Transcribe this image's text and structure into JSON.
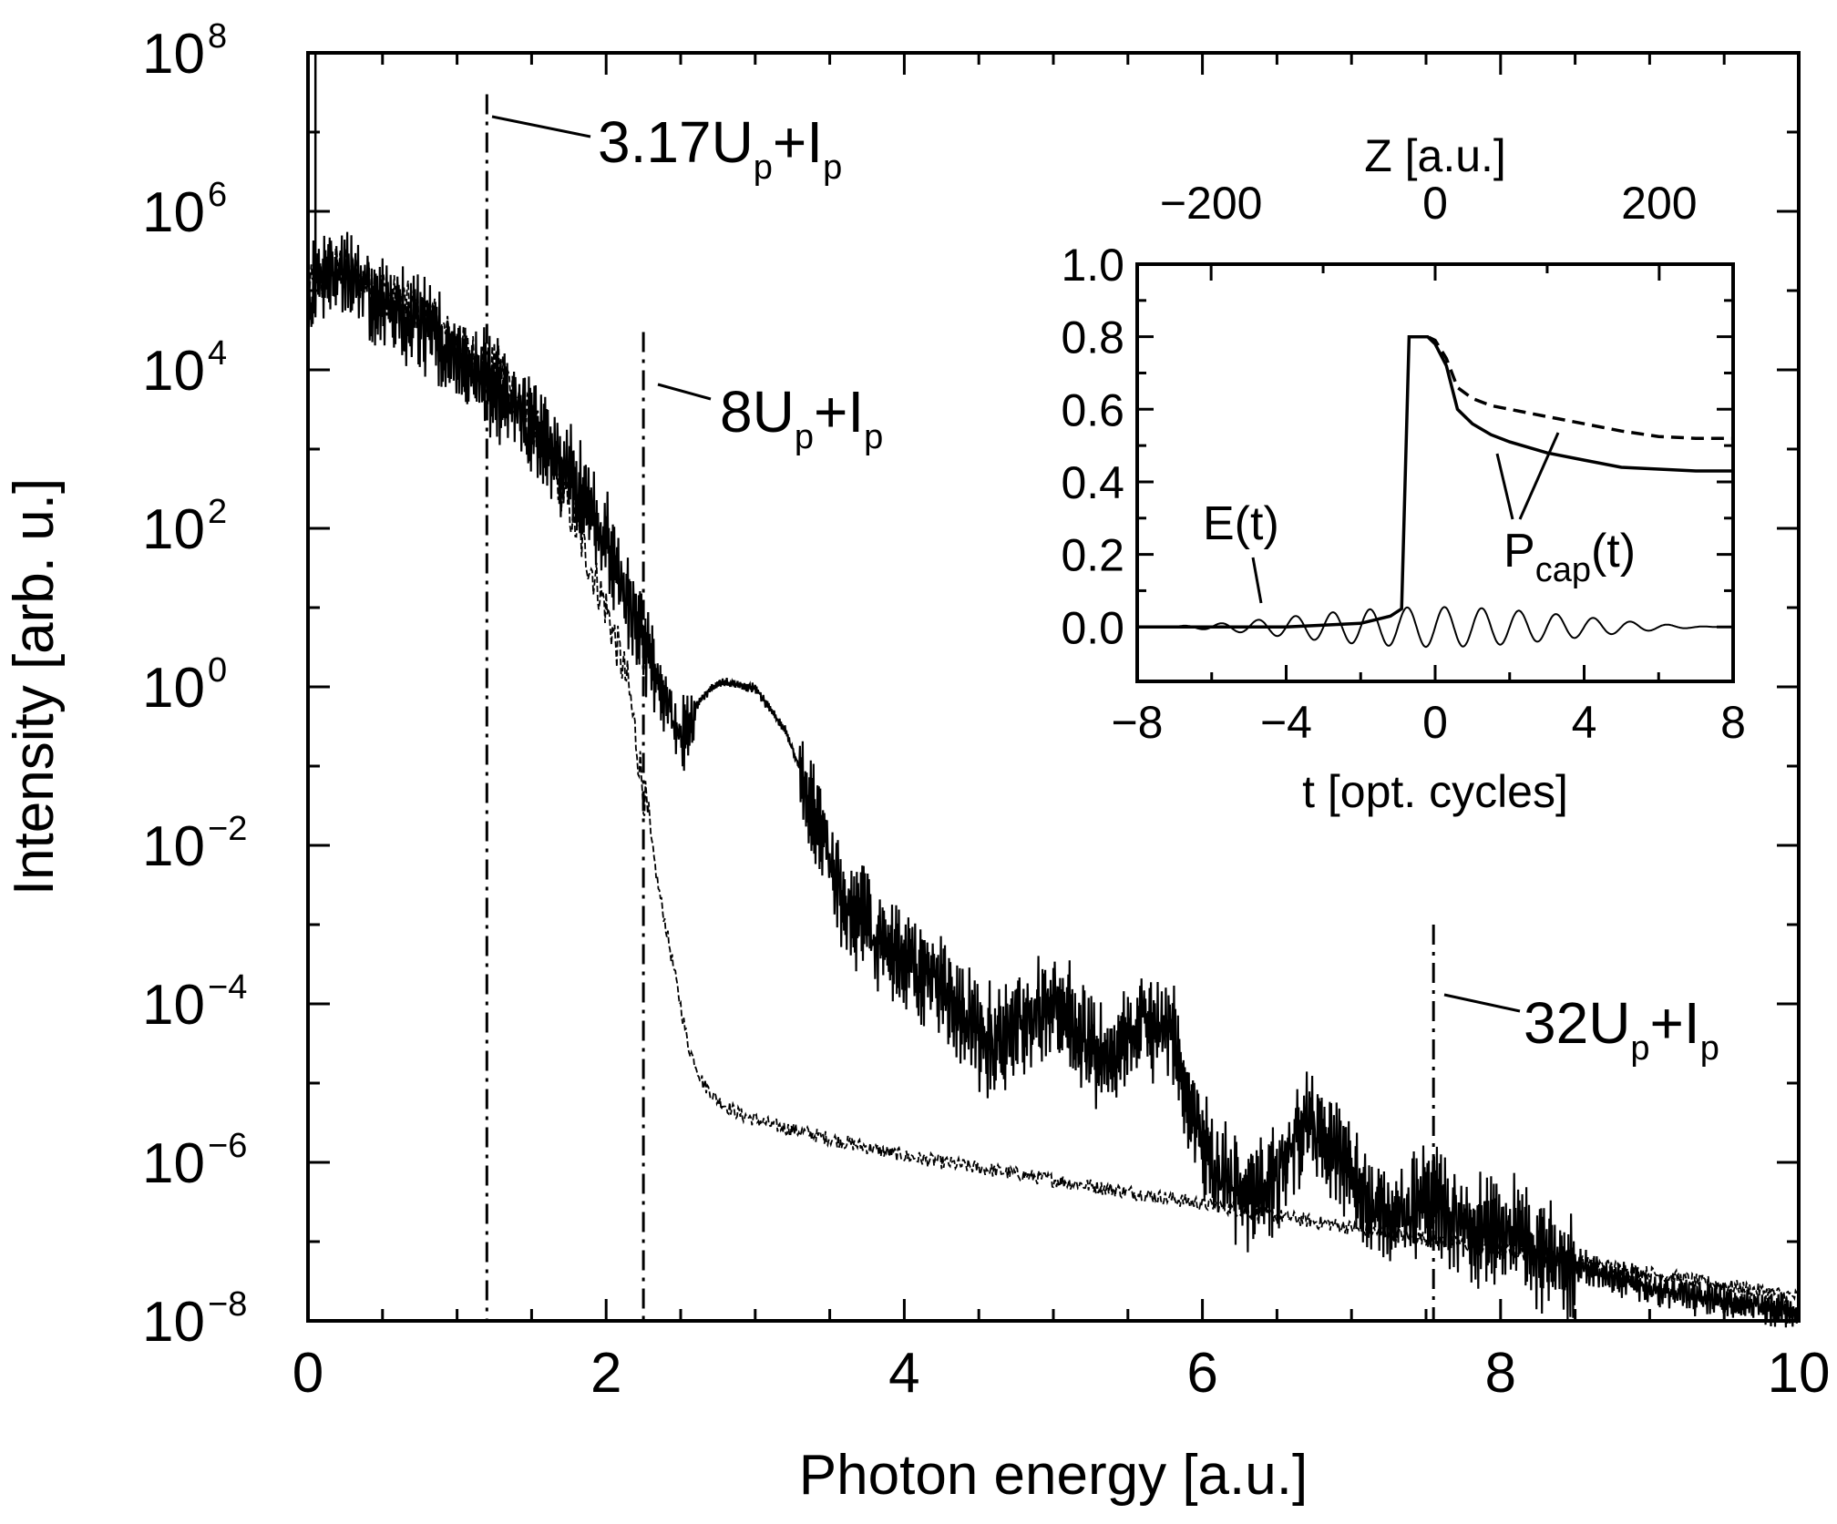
{
  "chart_data": [
    {
      "type": "line",
      "panel": "main",
      "xlabel": "Photon energy [a.u.]",
      "ylabel": "Intensity [arb. u.]",
      "xlim": [
        0,
        10
      ],
      "ylim": [
        1e-08,
        100000000.0
      ],
      "y_scale": "log",
      "x_ticks": [
        "0",
        "2",
        "4",
        "6",
        "8",
        "10"
      ],
      "y_ticks": [
        {
          "base": "10",
          "exp": "8"
        },
        {
          "base": "10",
          "exp": "6"
        },
        {
          "base": "10",
          "exp": "4"
        },
        {
          "base": "10",
          "exp": "2"
        },
        {
          "base": "10",
          "exp": "0"
        },
        {
          "base": "10",
          "exp": "−2"
        },
        {
          "base": "10",
          "exp": "−4"
        },
        {
          "base": "10",
          "exp": "−6"
        },
        {
          "base": "10",
          "exp": "−8"
        }
      ],
      "series": [
        {
          "style": "solid",
          "x": [
            0,
            0.1,
            0.3,
            0.5,
            0.8,
            1.0,
            1.2,
            1.5,
            1.8,
            2.0,
            2.2,
            2.3,
            2.4,
            2.5,
            2.6,
            2.7,
            2.8,
            3.0,
            3.2,
            3.4,
            3.6,
            3.8,
            4.0,
            4.2,
            4.4,
            4.6,
            4.8,
            5.0,
            5.2,
            5.4,
            5.6,
            5.8,
            5.95,
            6.1,
            6.3,
            6.5,
            6.7,
            6.9,
            7.1,
            7.3,
            7.5,
            7.7,
            7.9,
            8.1,
            8.3,
            8.6,
            9.0,
            9.5,
            10.0
          ],
          "y": [
            100000,
            316000,
            200000,
            100000,
            50000,
            20000,
            10000,
            3000,
            500,
            100,
            10,
            3,
            1,
            0.3,
            0.6,
            1,
            1.2,
            1,
            0.3,
            0.03,
            0.003,
            0.001,
            0.0005,
            0.0003,
            0.0001,
            5e-05,
            0.0001,
            0.0002,
            5e-05,
            3e-05,
            0.0001,
            7e-05,
            4e-06,
            1e-06,
            6e-07,
            1e-06,
            5e-06,
            2e-06,
            5e-07,
            3e-07,
            5e-07,
            3e-07,
            2e-07,
            2e-07,
            1e-07,
            5e-08,
            3e-08,
            2e-08,
            1.5e-08
          ]
        },
        {
          "style": "dashed",
          "x": [
            0,
            0.2,
            0.5,
            0.8,
            1.0,
            1.3,
            1.6,
            1.8,
            2.0,
            2.15,
            2.25,
            2.35,
            2.45,
            2.55,
            2.65,
            2.75,
            2.9,
            3.1,
            3.5,
            4.0,
            5.0,
            6.0,
            7.0,
            8.0,
            9.0,
            10.0
          ],
          "y": [
            100000,
            200000,
            100000,
            50000,
            20000,
            10000,
            1000,
            100,
            10,
            1,
            0.05,
            0.003,
            0.0003,
            3e-05,
            1e-05,
            6e-06,
            4e-06,
            3e-06,
            2e-06,
            1.2e-06,
            6e-07,
            3e-07,
            1.5e-07,
            8e-08,
            4e-08,
            2e-08
          ]
        }
      ],
      "annotations": [
        {
          "x": 1.2,
          "base": "3.17U",
          "sub1": "p",
          "plus": "+I",
          "sub2": "p"
        },
        {
          "x": 2.25,
          "base": "8U",
          "sub1": "p",
          "plus": "+I",
          "sub2": "p"
        },
        {
          "x": 7.55,
          "base": "32U",
          "sub1": "p",
          "plus": "+I",
          "sub2": "p"
        }
      ]
    },
    {
      "type": "line",
      "panel": "inset",
      "xlabel": "t [opt. cycles]",
      "x2label": "Z [a.u.]",
      "xlim": [
        -8,
        8
      ],
      "x2lim": [
        -266,
        266
      ],
      "ylim": [
        -0.15,
        1.0
      ],
      "x_ticks": [
        "−8",
        "−4",
        "0",
        "4",
        "8"
      ],
      "x2_ticks": [
        "−200",
        "0",
        "200"
      ],
      "y_ticks": [
        "1.0",
        "0.8",
        "0.6",
        "0.4",
        "0.2",
        "0.0"
      ],
      "series": [
        {
          "name": "P_cap solid",
          "style": "solid",
          "x": [
            -8,
            -6,
            -4,
            -2,
            -1.2,
            -0.9,
            -0.7,
            -0.5,
            -0.2,
            0,
            0.3,
            0.6,
            1,
            1.5,
            2,
            3,
            4,
            5,
            6,
            7,
            8
          ],
          "y": [
            0,
            0,
            0,
            0.01,
            0.03,
            0.05,
            0.8,
            0.8,
            0.8,
            0.78,
            0.72,
            0.6,
            0.56,
            0.53,
            0.51,
            0.48,
            0.46,
            0.44,
            0.435,
            0.43,
            0.43
          ]
        },
        {
          "name": "P_cap dashed",
          "style": "dashed",
          "x": [
            -0.7,
            -0.5,
            -0.2,
            0,
            0.3,
            0.6,
            1,
            1.5,
            2,
            3,
            4,
            5,
            6,
            7,
            8
          ],
          "y": [
            0.8,
            0.8,
            0.8,
            0.79,
            0.74,
            0.66,
            0.63,
            0.61,
            0.6,
            0.58,
            0.56,
            0.54,
            0.525,
            0.52,
            0.52
          ]
        },
        {
          "name": "E(t)",
          "style": "thin",
          "x_range": [
            -8,
            8
          ],
          "period": 1,
          "amplitude": 0.055,
          "envelope_halfwidth": 7.5
        }
      ],
      "annotations": [
        {
          "text_base": "E",
          "text_rest": "(t)",
          "id": "E"
        },
        {
          "text_base": "P",
          "sub": "cap",
          "text_rest": "(t)",
          "id": "Pcap"
        }
      ]
    }
  ]
}
